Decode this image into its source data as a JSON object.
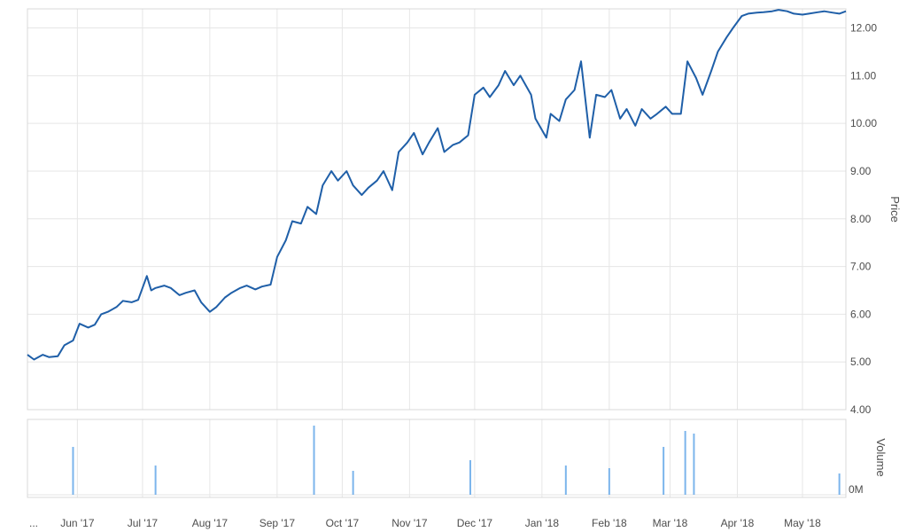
{
  "chart_data": [
    {
      "type": "line",
      "ylabel": "Price",
      "ylim": [
        4.0,
        12.4
      ],
      "yticks": [
        "4.00",
        "5.00",
        "6.00",
        "7.00",
        "8.00",
        "9.00",
        "10.00",
        "11.00",
        "12.00"
      ],
      "xlim": [
        "2017-05-09",
        "2018-05-21"
      ],
      "xtick_labels": [
        "...",
        "Jun '17",
        "Jul '17",
        "Aug '17",
        "Sep '17",
        "Oct '17",
        "Nov '17",
        "Dec '17",
        "Jan '18",
        "Feb '18",
        "Mar '18",
        "Apr '18",
        "May '18"
      ],
      "grid": true,
      "line_color": "#1f5fa8",
      "series": [
        {
          "x": [
            "2017-05-09",
            "2017-05-12",
            "2017-05-16",
            "2017-05-19",
            "2017-05-23",
            "2017-05-26",
            "2017-05-30",
            "2017-06-02",
            "2017-06-06",
            "2017-06-09",
            "2017-06-12",
            "2017-06-15",
            "2017-06-19",
            "2017-06-22",
            "2017-06-26",
            "2017-06-29",
            "2017-07-03",
            "2017-07-05",
            "2017-07-07",
            "2017-07-11",
            "2017-07-14",
            "2017-07-18",
            "2017-07-21",
            "2017-07-25",
            "2017-07-28",
            "2017-08-01",
            "2017-08-04",
            "2017-08-08",
            "2017-08-11",
            "2017-08-15",
            "2017-08-18",
            "2017-08-22",
            "2017-08-25",
            "2017-08-29",
            "2017-09-01",
            "2017-09-05",
            "2017-09-08",
            "2017-09-12",
            "2017-09-15",
            "2017-09-19",
            "2017-09-22",
            "2017-09-26",
            "2017-09-29",
            "2017-10-03",
            "2017-10-06",
            "2017-10-10",
            "2017-10-13",
            "2017-10-17",
            "2017-10-20",
            "2017-10-24",
            "2017-10-27",
            "2017-10-31",
            "2017-11-03",
            "2017-11-07",
            "2017-11-10",
            "2017-11-14",
            "2017-11-17",
            "2017-11-21",
            "2017-11-24",
            "2017-11-28",
            "2017-12-01",
            "2017-12-05",
            "2017-12-08",
            "2017-12-12",
            "2017-12-15",
            "2017-12-19",
            "2017-12-22",
            "2017-12-27",
            "2017-12-29",
            "2018-01-03",
            "2018-01-05",
            "2018-01-09",
            "2018-01-12",
            "2018-01-16",
            "2018-01-19",
            "2018-01-23",
            "2018-01-26",
            "2018-01-30",
            "2018-02-02",
            "2018-02-06",
            "2018-02-09",
            "2018-02-13",
            "2018-02-16",
            "2018-02-20",
            "2018-02-23",
            "2018-02-27",
            "2018-03-02",
            "2018-03-06",
            "2018-03-09",
            "2018-03-13",
            "2018-03-16",
            "2018-03-20",
            "2018-03-23",
            "2018-03-27",
            "2018-03-30",
            "2018-04-03",
            "2018-04-06",
            "2018-04-10",
            "2018-04-13",
            "2018-04-17",
            "2018-04-20",
            "2018-04-24",
            "2018-04-27",
            "2018-05-01",
            "2018-05-04",
            "2018-05-08",
            "2018-05-11",
            "2018-05-15",
            "2018-05-18",
            "2018-05-21"
          ],
          "y": [
            5.15,
            5.05,
            5.15,
            5.1,
            5.12,
            5.35,
            5.45,
            5.8,
            5.72,
            5.78,
            6.0,
            6.05,
            6.15,
            6.28,
            6.25,
            6.3,
            6.8,
            6.5,
            6.55,
            6.6,
            6.55,
            6.4,
            6.45,
            6.5,
            6.25,
            6.05,
            6.15,
            6.35,
            6.45,
            6.55,
            6.6,
            6.52,
            6.58,
            6.62,
            7.2,
            7.55,
            7.95,
            7.9,
            8.25,
            8.1,
            8.7,
            9.0,
            8.8,
            9.0,
            8.7,
            8.5,
            8.65,
            8.8,
            9.0,
            8.6,
            9.4,
            9.6,
            9.8,
            9.35,
            9.6,
            9.9,
            9.4,
            9.55,
            9.6,
            9.75,
            10.6,
            10.75,
            10.55,
            10.8,
            11.1,
            10.8,
            11.0,
            10.6,
            10.1,
            9.7,
            10.2,
            10.05,
            10.5,
            10.7,
            11.3,
            9.7,
            10.6,
            10.55,
            10.7,
            10.1,
            10.3,
            9.95,
            10.3,
            10.1,
            10.2,
            10.35,
            10.2,
            10.2,
            11.3,
            10.95,
            10.6,
            11.1,
            11.5,
            11.8,
            12.0,
            12.25,
            12.3,
            12.32,
            12.33,
            12.35,
            12.38,
            12.35,
            12.3,
            12.28,
            12.3,
            12.33,
            12.35,
            12.32,
            12.3,
            12.35
          ]
        }
      ]
    },
    {
      "type": "bar",
      "ylabel": "Volume",
      "ytick_labels": [
        "0M"
      ],
      "bar_color": "#7cb5ec",
      "x": [
        "2017-05-30",
        "2017-07-07",
        "2017-09-18",
        "2017-10-06",
        "2017-11-29",
        "2018-01-12",
        "2018-02-01",
        "2018-02-26",
        "2018-03-08",
        "2018-03-12",
        "2018-05-18"
      ],
      "values": [
        0.36,
        0.22,
        0.52,
        0.18,
        0.26,
        0.22,
        0.2,
        0.36,
        0.48,
        0.46,
        0.16
      ]
    }
  ]
}
